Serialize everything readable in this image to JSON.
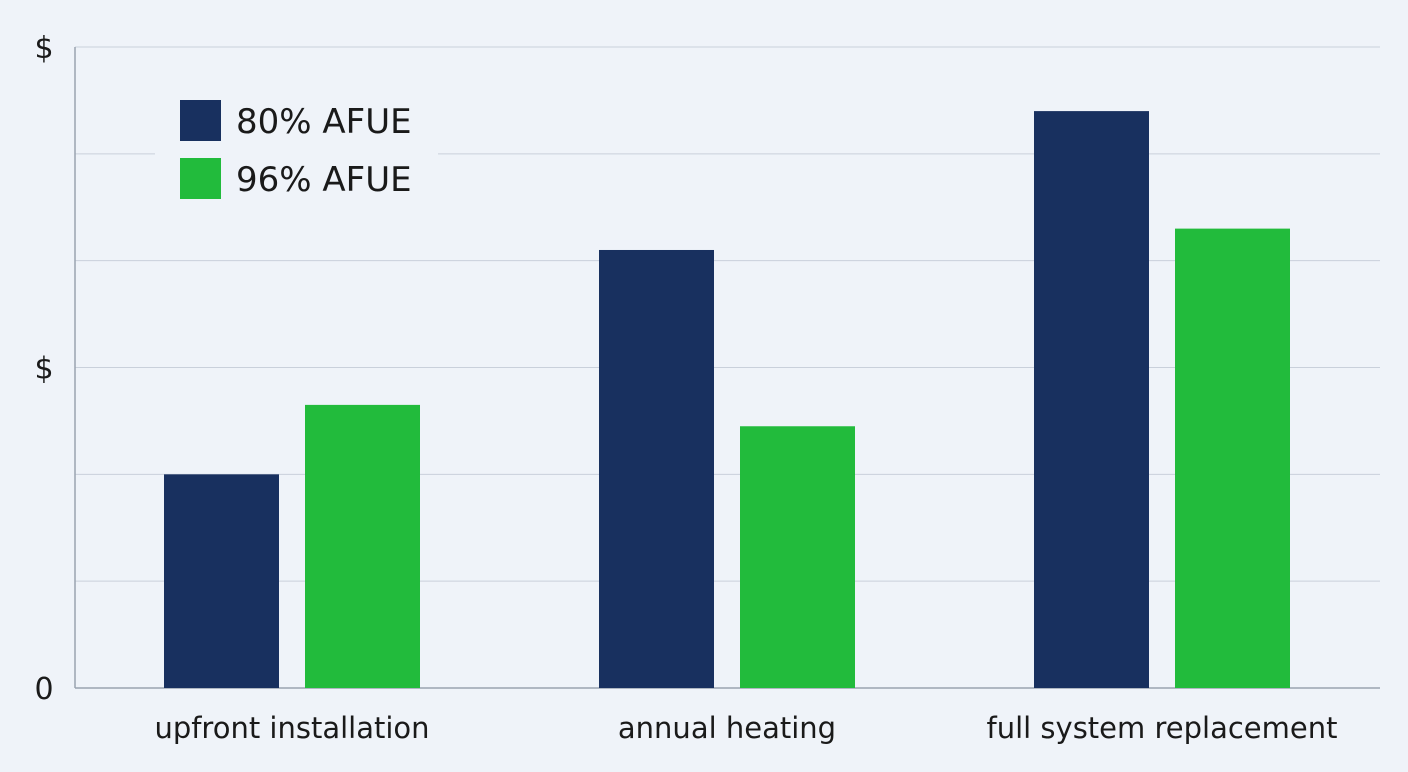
{
  "chart_data": {
    "type": "bar",
    "title": "",
    "xlabel": "",
    "ylabel": "",
    "categories": [
      "upfront installation",
      "annual heating",
      "full system replacement"
    ],
    "series": [
      {
        "name": "80% AFUE",
        "color": "#18305f",
        "values": [
          2.0,
          4.1,
          5.4
        ]
      },
      {
        "name": "96% AFUE",
        "color": "#22bb3c",
        "values": [
          2.65,
          2.45,
          4.3
        ]
      }
    ],
    "ylim": [
      0,
      6
    ],
    "y_tick_labels": [
      {
        "value": 0,
        "label": "0"
      },
      {
        "value": 3,
        "label": "$"
      },
      {
        "value": 6,
        "label": "$"
      }
    ],
    "gridlines": true,
    "gridline_values": [
      1,
      2,
      3,
      4,
      5,
      6
    ],
    "legend_position": "top-left",
    "colors": {
      "background": "#eff3f9",
      "grid": "#c9d0db",
      "axis": "#9aa3b0",
      "text": "#1a1a1a"
    }
  }
}
